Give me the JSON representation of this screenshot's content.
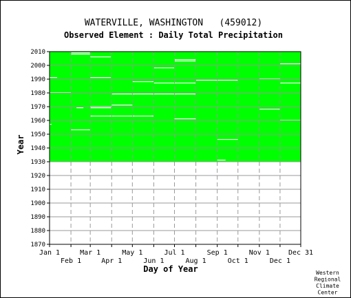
{
  "chart_data": {
    "type": "heatmap",
    "title": "WATERVILLE, WASHINGTON   (459012)",
    "subtitle": "Observed Element : Daily Total Precipitation",
    "xlabel": "Day of Year",
    "ylabel": "Year",
    "credit": [
      "Western",
      "Regional",
      "Climate",
      "Center"
    ],
    "x_ticks_upper": [
      {
        "label": "Jan 1",
        "day": 1
      },
      {
        "label": "Mar 1",
        "day": 60
      },
      {
        "label": "May 1",
        "day": 121
      },
      {
        "label": "Jul 1",
        "day": 182
      },
      {
        "label": "Sep 1",
        "day": 244
      },
      {
        "label": "Nov 1",
        "day": 305
      },
      {
        "label": "Dec 31",
        "day": 365
      }
    ],
    "x_ticks_lower": [
      {
        "label": "Feb 1",
        "day": 32
      },
      {
        "label": "Apr 1",
        "day": 91
      },
      {
        "label": "Jun 1",
        "day": 152
      },
      {
        "label": "Aug 1",
        "day": 213
      },
      {
        "label": "Oct 1",
        "day": 274
      },
      {
        "label": "Dec 1",
        "day": 335
      }
    ],
    "xlim": [
      1,
      365
    ],
    "ylim": [
      1870,
      2010
    ],
    "y_ticks": [
      1870,
      1880,
      1890,
      1900,
      1910,
      1920,
      1930,
      1940,
      1950,
      1960,
      1970,
      1980,
      1990,
      2000,
      2010
    ],
    "grid": true,
    "data_color": "#00ff00",
    "missing_color": "#ffffff",
    "data_coverage": {
      "start_year": 1931,
      "end_year": 2010,
      "day_start": 1,
      "day_end": 365
    },
    "missing_segments": [
      {
        "year": 2009,
        "day_start": 32,
        "day_end": 60
      },
      {
        "year": 2008,
        "day_start": 32,
        "day_end": 60
      },
      {
        "year": 2006,
        "day_start": 60,
        "day_end": 90
      },
      {
        "year": 2004,
        "day_start": 182,
        "day_end": 213
      },
      {
        "year": 2003,
        "day_start": 182,
        "day_end": 213
      },
      {
        "year": 2001,
        "day_start": 335,
        "day_end": 365
      },
      {
        "year": 1998,
        "day_start": 152,
        "day_end": 182
      },
      {
        "year": 1991,
        "day_start": 1,
        "day_end": 12
      },
      {
        "year": 1991,
        "day_start": 60,
        "day_end": 90
      },
      {
        "year": 1990,
        "day_start": 305,
        "day_end": 335
      },
      {
        "year": 1989,
        "day_start": 213,
        "day_end": 244
      },
      {
        "year": 1989,
        "day_start": 244,
        "day_end": 274
      },
      {
        "year": 1988,
        "day_start": 121,
        "day_end": 152
      },
      {
        "year": 1987,
        "day_start": 152,
        "day_end": 213
      },
      {
        "year": 1987,
        "day_start": 335,
        "day_end": 365
      },
      {
        "year": 1980,
        "day_start": 1,
        "day_end": 32
      },
      {
        "year": 1979,
        "day_start": 91,
        "day_end": 213
      },
      {
        "year": 1971,
        "day_start": 91,
        "day_end": 121
      },
      {
        "year": 1970,
        "day_start": 60,
        "day_end": 91
      },
      {
        "year": 1969,
        "day_start": 40,
        "day_end": 50
      },
      {
        "year": 1969,
        "day_start": 60,
        "day_end": 90
      },
      {
        "year": 1968,
        "day_start": 305,
        "day_end": 335
      },
      {
        "year": 1963,
        "day_start": 60,
        "day_end": 152
      },
      {
        "year": 1961,
        "day_start": 182,
        "day_end": 213
      },
      {
        "year": 1960,
        "day_start": 335,
        "day_end": 365
      },
      {
        "year": 1957,
        "day_start": 1,
        "day_end": 4
      },
      {
        "year": 1953,
        "day_start": 32,
        "day_end": 60
      },
      {
        "year": 1946,
        "day_start": 244,
        "day_end": 274
      },
      {
        "year": 1931,
        "day_start": 244,
        "day_end": 256
      }
    ]
  }
}
